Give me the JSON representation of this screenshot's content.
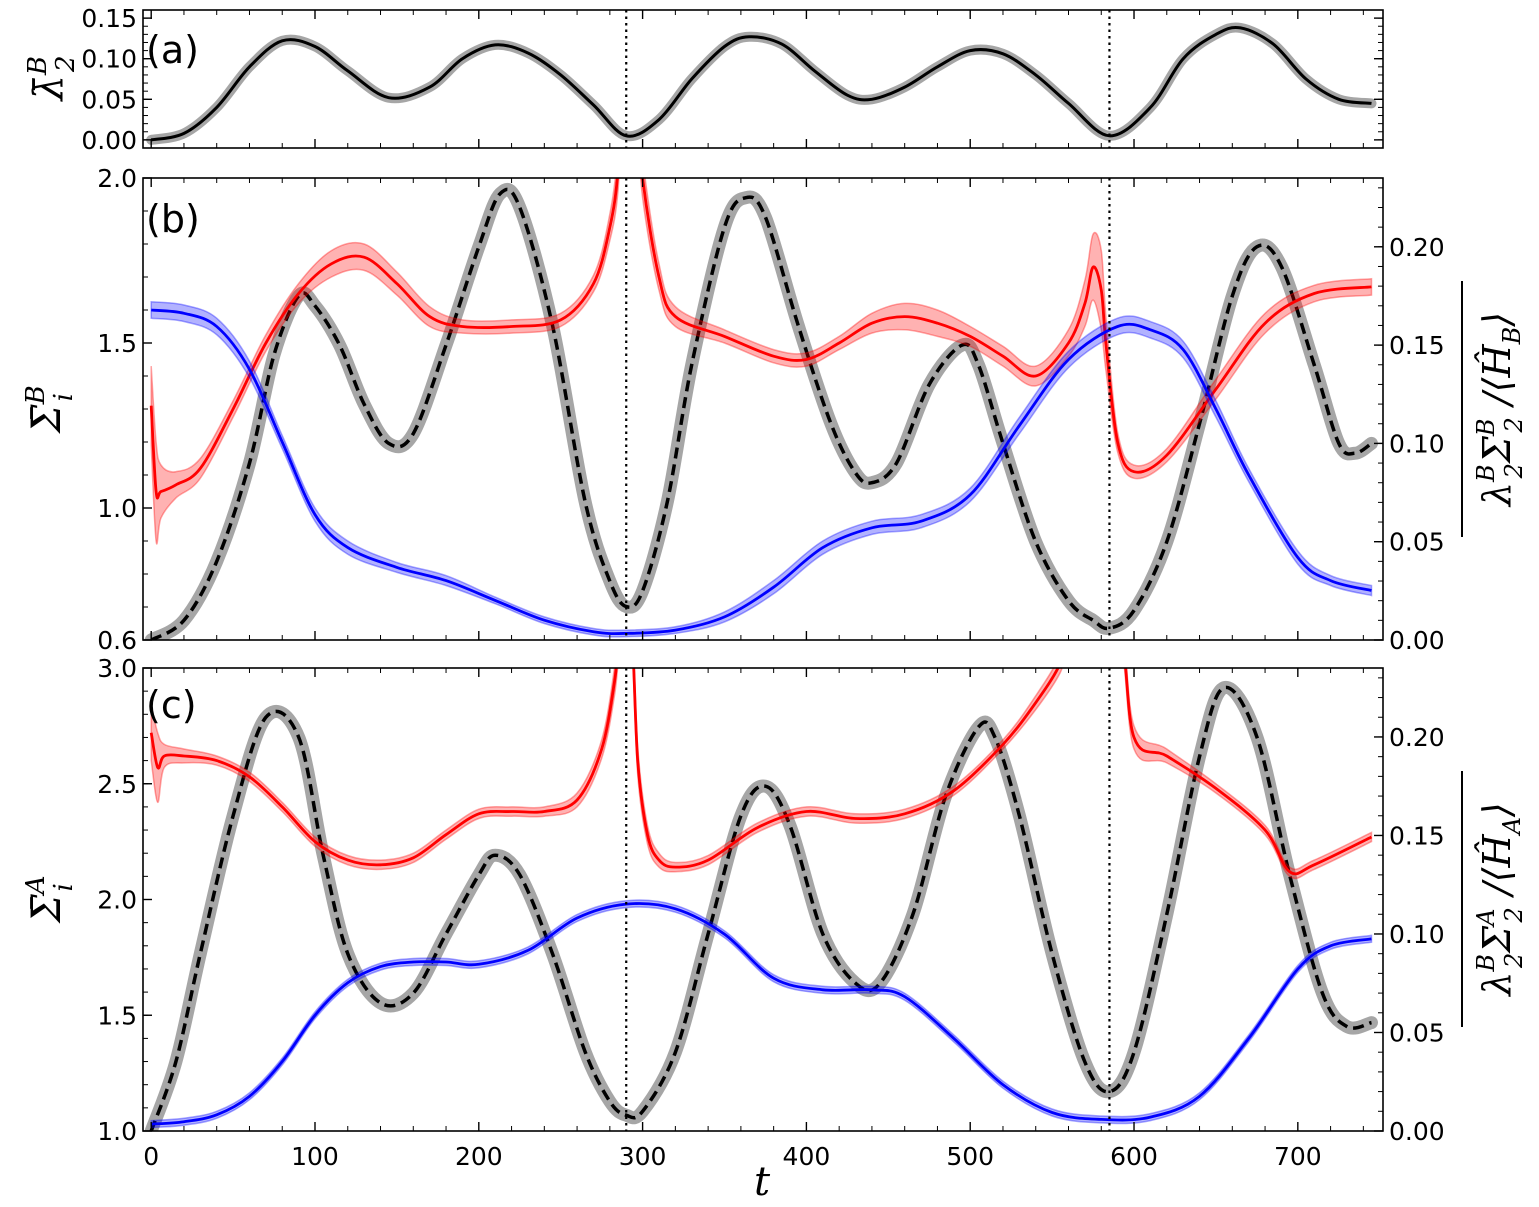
{
  "chart_data": [
    {
      "panel": "a",
      "type": "line",
      "panel_label": "(a)",
      "xlabel": "t",
      "ylabel": "λ̄₂ᴮ",
      "xlim": [
        -5,
        752
      ],
      "ylim": [
        -0.01,
        0.16
      ],
      "xticks": [
        0,
        100,
        200,
        300,
        400,
        500,
        600,
        700
      ],
      "yticks": [
        0.0,
        0.05,
        0.1,
        0.15
      ],
      "ytick_labels": [
        "0.00",
        "0.05",
        "0.10",
        "0.15"
      ],
      "vlines": [
        290,
        585
      ],
      "series": [
        {
          "color": "#000000",
          "band_color": "#888888",
          "style": "solid",
          "x": [
            0,
            20,
            40,
            60,
            80,
            100,
            120,
            145,
            170,
            190,
            210,
            230,
            250,
            270,
            290,
            310,
            330,
            350,
            365,
            385,
            405,
            425,
            440,
            460,
            480,
            500,
            520,
            540,
            560,
            585,
            610,
            630,
            650,
            665,
            685,
            705,
            725,
            745
          ],
          "y": [
            0.0,
            0.008,
            0.04,
            0.09,
            0.122,
            0.115,
            0.085,
            0.052,
            0.065,
            0.1,
            0.117,
            0.107,
            0.08,
            0.043,
            0.005,
            0.025,
            0.075,
            0.115,
            0.127,
            0.118,
            0.085,
            0.055,
            0.05,
            0.065,
            0.09,
            0.11,
            0.106,
            0.08,
            0.045,
            0.005,
            0.04,
            0.1,
            0.13,
            0.138,
            0.118,
            0.075,
            0.05,
            0.045
          ]
        }
      ]
    },
    {
      "panel": "b",
      "type": "line",
      "panel_label": "(b)",
      "xlabel": "t",
      "ylabel": "Σ̄ᵢᴮ",
      "ylabel_right": "λ₂ᴮΣ₂ᴮ / ⟨Ĥ_B⟩",
      "xlim": [
        -5,
        752
      ],
      "ylim": [
        0.6,
        2.0
      ],
      "ylim_right": [
        0.0,
        0.235
      ],
      "yticks": [
        0.6,
        1.0,
        1.5,
        2.0
      ],
      "ytick_labels": [
        "0.6",
        "1.0",
        "1.5",
        "2.0"
      ],
      "yticks_right": [
        0.0,
        0.05,
        0.1,
        0.15,
        0.2
      ],
      "ytick_labels_right": [
        "0.00",
        "0.05",
        "0.10",
        "0.15",
        "0.20"
      ],
      "vlines": [
        290,
        585
      ],
      "series": [
        {
          "color": "#ff0000",
          "axis": "left",
          "x": [
            0,
            3,
            6,
            15,
            30,
            50,
            70,
            90,
            110,
            130,
            150,
            170,
            190,
            220,
            250,
            270,
            280,
            285,
            288,
            295,
            300,
            310,
            320,
            350,
            380,
            400,
            420,
            440,
            460,
            480,
            500,
            520,
            540,
            560,
            570,
            575,
            580,
            583,
            590,
            600,
            620,
            650,
            680,
            710,
            745
          ],
          "y": [
            1.31,
            1.05,
            1.05,
            1.07,
            1.12,
            1.3,
            1.5,
            1.65,
            1.74,
            1.76,
            1.68,
            1.58,
            1.55,
            1.55,
            1.57,
            1.68,
            1.85,
            2.02,
            2.3,
            2.3,
            2.0,
            1.7,
            1.58,
            1.52,
            1.46,
            1.45,
            1.5,
            1.56,
            1.58,
            1.56,
            1.52,
            1.46,
            1.4,
            1.5,
            1.62,
            1.73,
            1.66,
            1.49,
            1.2,
            1.11,
            1.16,
            1.36,
            1.56,
            1.65,
            1.67
          ],
          "band": [
            0.12,
            0.15,
            0.08,
            0.04,
            0.03,
            0.025,
            0.025,
            0.03,
            0.04,
            0.04,
            0.035,
            0.03,
            0.02,
            0.02,
            0.02,
            0.025,
            0.04,
            0.06,
            0.06,
            0.06,
            0.06,
            0.04,
            0.03,
            0.02,
            0.02,
            0.02,
            0.02,
            0.03,
            0.04,
            0.04,
            0.03,
            0.03,
            0.03,
            0.04,
            0.07,
            0.1,
            0.12,
            0.08,
            0.03,
            0.02,
            0.02,
            0.03,
            0.03,
            0.025,
            0.025
          ]
        },
        {
          "color": "#0000ff",
          "axis": "left",
          "x": [
            0,
            20,
            40,
            60,
            80,
            100,
            120,
            150,
            180,
            210,
            240,
            270,
            290,
            320,
            350,
            380,
            410,
            440,
            470,
            500,
            530,
            560,
            590,
            610,
            630,
            650,
            670,
            700,
            720,
            745
          ],
          "y": [
            1.6,
            1.59,
            1.55,
            1.42,
            1.2,
            0.98,
            0.88,
            0.82,
            0.78,
            0.72,
            0.66,
            0.625,
            0.62,
            0.63,
            0.67,
            0.76,
            0.88,
            0.94,
            0.96,
            1.04,
            1.25,
            1.45,
            1.55,
            1.54,
            1.48,
            1.3,
            1.1,
            0.85,
            0.78,
            0.75
          ],
          "band": [
            0.025,
            0.025,
            0.025,
            0.025,
            0.02,
            0.02,
            0.02,
            0.015,
            0.015,
            0.01,
            0.01,
            0.01,
            0.01,
            0.01,
            0.015,
            0.02,
            0.02,
            0.02,
            0.02,
            0.02,
            0.025,
            0.025,
            0.025,
            0.025,
            0.025,
            0.025,
            0.02,
            0.02,
            0.015,
            0.015
          ]
        },
        {
          "color": "#000000",
          "band_color": "#888888",
          "style": "dashed",
          "axis": "right",
          "x": [
            0,
            20,
            40,
            60,
            75,
            90,
            100,
            115,
            130,
            145,
            160,
            180,
            200,
            213,
            225,
            245,
            265,
            280,
            290,
            300,
            315,
            330,
            350,
            363,
            375,
            395,
            415,
            430,
            440,
            455,
            475,
            495,
            505,
            520,
            540,
            560,
            575,
            585,
            600,
            620,
            640,
            660,
            675,
            690,
            710,
            725,
            735,
            745
          ],
          "y": [
            0.0,
            0.01,
            0.04,
            0.09,
            0.145,
            0.175,
            0.17,
            0.15,
            0.12,
            0.1,
            0.105,
            0.15,
            0.2,
            0.227,
            0.22,
            0.16,
            0.07,
            0.03,
            0.017,
            0.025,
            0.07,
            0.14,
            0.21,
            0.225,
            0.215,
            0.16,
            0.11,
            0.085,
            0.08,
            0.09,
            0.13,
            0.15,
            0.14,
            0.1,
            0.05,
            0.02,
            0.01,
            0.006,
            0.015,
            0.05,
            0.11,
            0.175,
            0.2,
            0.19,
            0.14,
            0.1,
            0.095,
            0.1
          ]
        }
      ]
    },
    {
      "panel": "c",
      "type": "line",
      "panel_label": "(c)",
      "xlabel": "t",
      "ylabel": "Σ̄ᵢᴬ",
      "ylabel_right": "λ₂ᴮΣ₂ᴬ / ⟨Ĥ_A⟩",
      "xlim": [
        -5,
        752
      ],
      "ylim": [
        1.0,
        3.0
      ],
      "ylim_right": [
        0.0,
        0.235
      ],
      "yticks": [
        1.0,
        1.5,
        2.0,
        2.5,
        3.0
      ],
      "ytick_labels": [
        "1.0",
        "1.5",
        "2.0",
        "2.5",
        "3.0"
      ],
      "yticks_right": [
        0.0,
        0.05,
        0.1,
        0.15,
        0.2
      ],
      "ytick_labels_right": [
        "0.00",
        "0.05",
        "0.10",
        "0.15",
        "0.20"
      ],
      "xtick_labels": [
        "0",
        "100",
        "200",
        "300",
        "400",
        "500",
        "600",
        "700"
      ],
      "vlines": [
        290,
        585
      ],
      "series": [
        {
          "color": "#ff0000",
          "axis": "left",
          "x": [
            0,
            4,
            8,
            20,
            40,
            60,
            80,
            100,
            120,
            140,
            160,
            180,
            200,
            220,
            240,
            260,
            275,
            283,
            287,
            293,
            297,
            303,
            310,
            320,
            340,
            370,
            400,
            430,
            460,
            490,
            520,
            540,
            555,
            563,
            590,
            600,
            620,
            650,
            680,
            695,
            710,
            745
          ],
          "y": [
            2.72,
            2.57,
            2.62,
            2.62,
            2.6,
            2.53,
            2.4,
            2.25,
            2.17,
            2.15,
            2.18,
            2.28,
            2.37,
            2.38,
            2.38,
            2.43,
            2.65,
            2.95,
            3.2,
            3.2,
            2.6,
            2.28,
            2.17,
            2.14,
            2.17,
            2.31,
            2.38,
            2.35,
            2.37,
            2.47,
            2.67,
            2.85,
            3.02,
            3.2,
            3.2,
            2.7,
            2.62,
            2.48,
            2.3,
            2.12,
            2.15,
            2.27
          ],
          "band": [
            0.12,
            0.15,
            0.05,
            0.03,
            0.02,
            0.02,
            0.02,
            0.02,
            0.02,
            0.02,
            0.02,
            0.02,
            0.02,
            0.02,
            0.02,
            0.03,
            0.04,
            0.06,
            0.06,
            0.06,
            0.06,
            0.04,
            0.03,
            0.02,
            0.02,
            0.02,
            0.02,
            0.02,
            0.02,
            0.02,
            0.02,
            0.03,
            0.04,
            0.06,
            0.06,
            0.05,
            0.03,
            0.02,
            0.02,
            0.02,
            0.02,
            0.02
          ]
        },
        {
          "color": "#0000ff",
          "axis": "left",
          "x": [
            0,
            20,
            40,
            60,
            80,
            100,
            120,
            140,
            160,
            180,
            200,
            230,
            260,
            290,
            320,
            350,
            380,
            410,
            440,
            460,
            490,
            520,
            550,
            580,
            610,
            640,
            670,
            700,
            720,
            745
          ],
          "y": [
            1.03,
            1.04,
            1.07,
            1.15,
            1.3,
            1.5,
            1.64,
            1.71,
            1.73,
            1.73,
            1.72,
            1.78,
            1.92,
            1.98,
            1.96,
            1.85,
            1.66,
            1.61,
            1.61,
            1.58,
            1.4,
            1.2,
            1.08,
            1.05,
            1.06,
            1.15,
            1.4,
            1.7,
            1.8,
            1.83
          ],
          "band": [
            0.015,
            0.015,
            0.015,
            0.015,
            0.015,
            0.015,
            0.015,
            0.015,
            0.015,
            0.015,
            0.015,
            0.015,
            0.015,
            0.015,
            0.015,
            0.015,
            0.015,
            0.015,
            0.015,
            0.015,
            0.015,
            0.015,
            0.015,
            0.015,
            0.015,
            0.015,
            0.015,
            0.015,
            0.015,
            0.015
          ]
        },
        {
          "color": "#000000",
          "band_color": "#888888",
          "style": "dashed",
          "axis": "right",
          "x": [
            0,
            15,
            30,
            50,
            70,
            90,
            105,
            120,
            140,
            160,
            180,
            200,
            210,
            225,
            245,
            265,
            280,
            290,
            300,
            320,
            340,
            360,
            375,
            390,
            410,
            430,
            445,
            465,
            485,
            505,
            515,
            530,
            550,
            570,
            585,
            600,
            620,
            640,
            655,
            675,
            695,
            715,
            730,
            745
          ],
          "y": [
            0.0,
            0.035,
            0.09,
            0.16,
            0.21,
            0.2,
            0.14,
            0.09,
            0.065,
            0.07,
            0.1,
            0.13,
            0.14,
            0.13,
            0.09,
            0.04,
            0.015,
            0.008,
            0.01,
            0.04,
            0.1,
            0.16,
            0.175,
            0.155,
            0.1,
            0.075,
            0.075,
            0.11,
            0.17,
            0.205,
            0.2,
            0.16,
            0.09,
            0.035,
            0.02,
            0.04,
            0.11,
            0.19,
            0.225,
            0.2,
            0.13,
            0.07,
            0.053,
            0.055
          ]
        }
      ]
    }
  ]
}
